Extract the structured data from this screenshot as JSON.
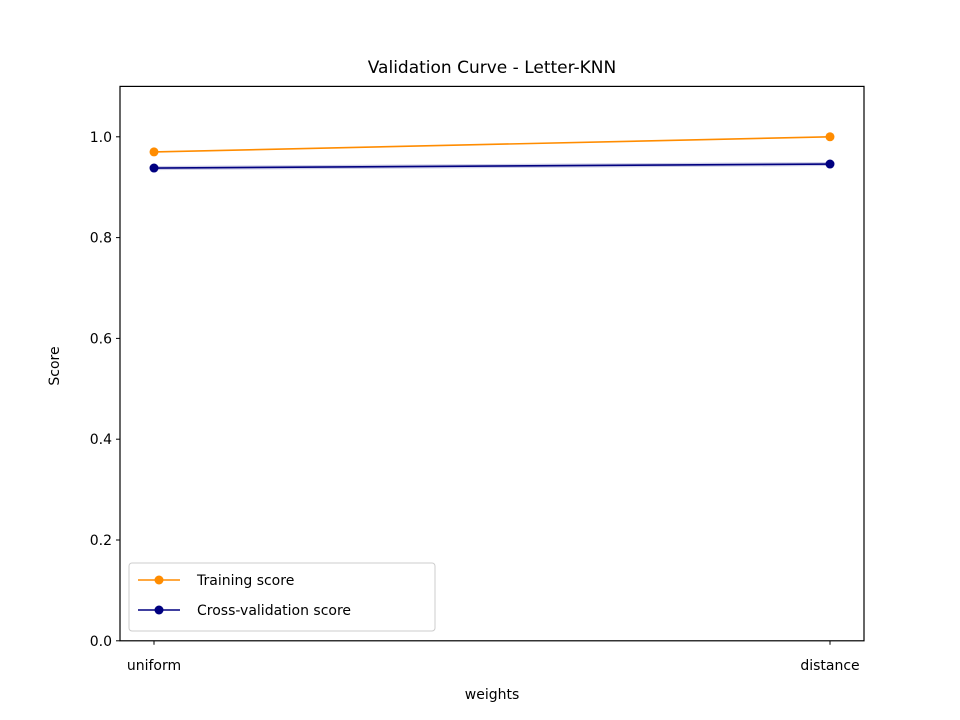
{
  "chart_data": {
    "type": "line",
    "title": "Validation Curve - Letter-KNN",
    "xlabel": "weights",
    "ylabel": "Score",
    "categories": [
      "uniform",
      "distance"
    ],
    "ylim": [
      0.0,
      1.1
    ],
    "yticks": [
      "0.0",
      "0.2",
      "0.4",
      "0.6",
      "0.8",
      "1.0"
    ],
    "grid": false,
    "legend_position": "lower-left",
    "series": [
      {
        "name": "Training score",
        "values": [
          0.97,
          1.0
        ],
        "color": "#ff8c00",
        "band": [
          [
            0.969,
            0.971
          ],
          [
            1.0,
            1.0
          ]
        ]
      },
      {
        "name": "Cross-validation score",
        "values": [
          0.938,
          0.946
        ],
        "color": "#000080",
        "band": [
          [
            0.934,
            0.942
          ],
          [
            0.942,
            0.95
          ]
        ]
      }
    ]
  }
}
